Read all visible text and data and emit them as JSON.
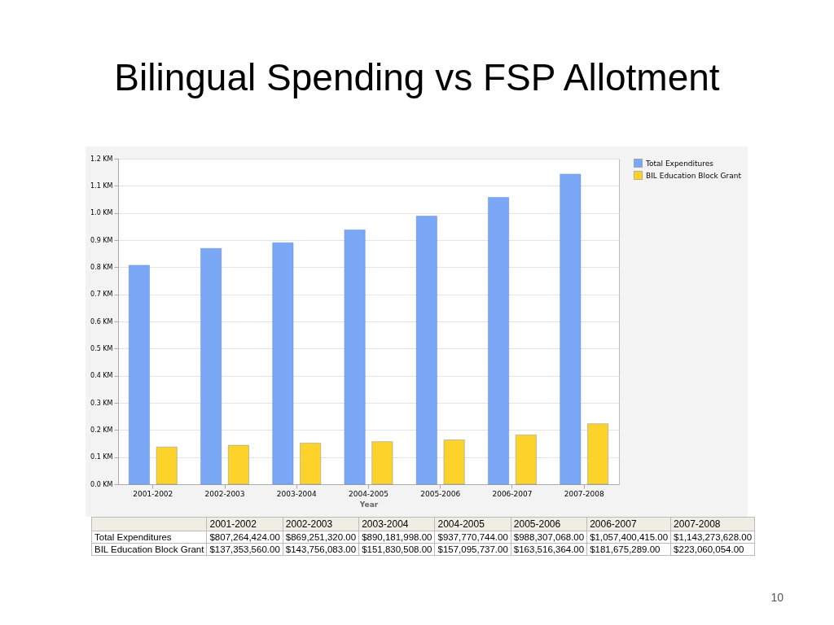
{
  "chart_data": {
    "type": "bar",
    "title": "Bilingual Spending vs FSP Allotment",
    "xlabel": "Year",
    "categories": [
      "2001-2002",
      "2002-2003",
      "2003-2004",
      "2004-2005",
      "2005-2006",
      "2006-2007",
      "2007-2008"
    ],
    "series": [
      {
        "name": "Total Expenditures",
        "color": "#7ba7f7",
        "values": [
          0.807264424,
          0.86925132,
          0.890181998,
          0.937770744,
          0.988307068,
          1.057400415,
          1.143273628
        ]
      },
      {
        "name": "BIL Education Block Grant",
        "color": "#fdd22a",
        "values": [
          0.13735356,
          0.143756083,
          0.151830508,
          0.157095737,
          0.163516364,
          0.181675289,
          0.223060054
        ]
      }
    ],
    "ylim": [
      0,
      1.2
    ],
    "yticks": [
      {
        "value": 0,
        "label": "0.0 KM"
      },
      {
        "value": 0.1,
        "label": "0.1 KM"
      },
      {
        "value": 0.2,
        "label": "0.2 KM"
      },
      {
        "value": 0.3,
        "label": "0.3 KM"
      },
      {
        "value": 0.4,
        "label": "0.4 KM"
      },
      {
        "value": 0.5,
        "label": "0.5 KM"
      },
      {
        "value": 0.6,
        "label": "0.6 KM"
      },
      {
        "value": 0.7,
        "label": "0.7 KM"
      },
      {
        "value": 0.8,
        "label": "0.8 KM"
      },
      {
        "value": 0.9,
        "label": "0.9 KM"
      },
      {
        "value": 1.0,
        "label": "1.0 KM"
      },
      {
        "value": 1.1,
        "label": "1.1 KM"
      },
      {
        "value": 1.2,
        "label": "1.2 KM"
      }
    ],
    "grid": "y",
    "legend": "right",
    "annotations": [
      "$807,264,424.00",
      "$869,251,320.00",
      "$890,181,998.00",
      "$937,770,744.00",
      "$988,307,068.00",
      "$1,057,400,415.00",
      "$1,143,273,628.00",
      "$137,353,560.00",
      "$143,756,083.00",
      "$151,830,508.00",
      "$157,095,737.00",
      "$163,516,364.00",
      "$181,675,289.00",
      "$223,060,054.00",
      "10"
    ]
  }
}
